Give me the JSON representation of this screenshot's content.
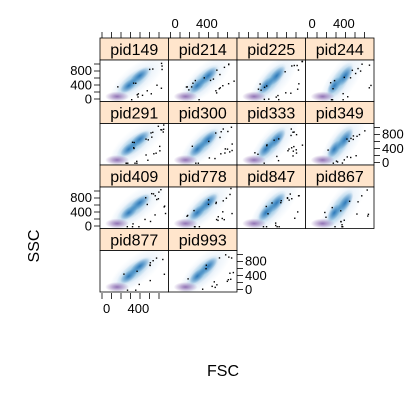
{
  "colors": {
    "strip_fill": "#ffe5cc",
    "density_light": "#dbe9f6",
    "density_mid": "#6aaed6",
    "density_dark": "#2171b5",
    "core_purple": "#8c6bb1",
    "outlier": "#000000",
    "frame": "#000000"
  },
  "chart_data": {
    "type": "scatter",
    "plot_style": "lattice-trellis-smoothed-density",
    "xlabel": "FSC",
    "ylabel": "SSC",
    "layout": {
      "columns": 4,
      "rows": 4
    },
    "xticks": [
      0,
      400
    ],
    "yticks": [
      0,
      400,
      800
    ],
    "xlim": [
      0,
      1000
    ],
    "ylim": [
      0,
      1000
    ],
    "panels": [
      {
        "label": "pid149",
        "row": 0,
        "col": 0
      },
      {
        "label": "pid214",
        "row": 0,
        "col": 1
      },
      {
        "label": "pid225",
        "row": 0,
        "col": 2
      },
      {
        "label": "pid244",
        "row": 0,
        "col": 3
      },
      {
        "label": "pid291",
        "row": 1,
        "col": 0
      },
      {
        "label": "pid300",
        "row": 1,
        "col": 1
      },
      {
        "label": "pid333",
        "row": 1,
        "col": 2
      },
      {
        "label": "pid349",
        "row": 1,
        "col": 3
      },
      {
        "label": "pid409",
        "row": 2,
        "col": 0
      },
      {
        "label": "pid778",
        "row": 2,
        "col": 1
      },
      {
        "label": "pid847",
        "row": 2,
        "col": 2
      },
      {
        "label": "pid867",
        "row": 2,
        "col": 3
      },
      {
        "label": "pid877",
        "row": 3,
        "col": 0
      },
      {
        "label": "pid993",
        "row": 3,
        "col": 1
      }
    ]
  }
}
